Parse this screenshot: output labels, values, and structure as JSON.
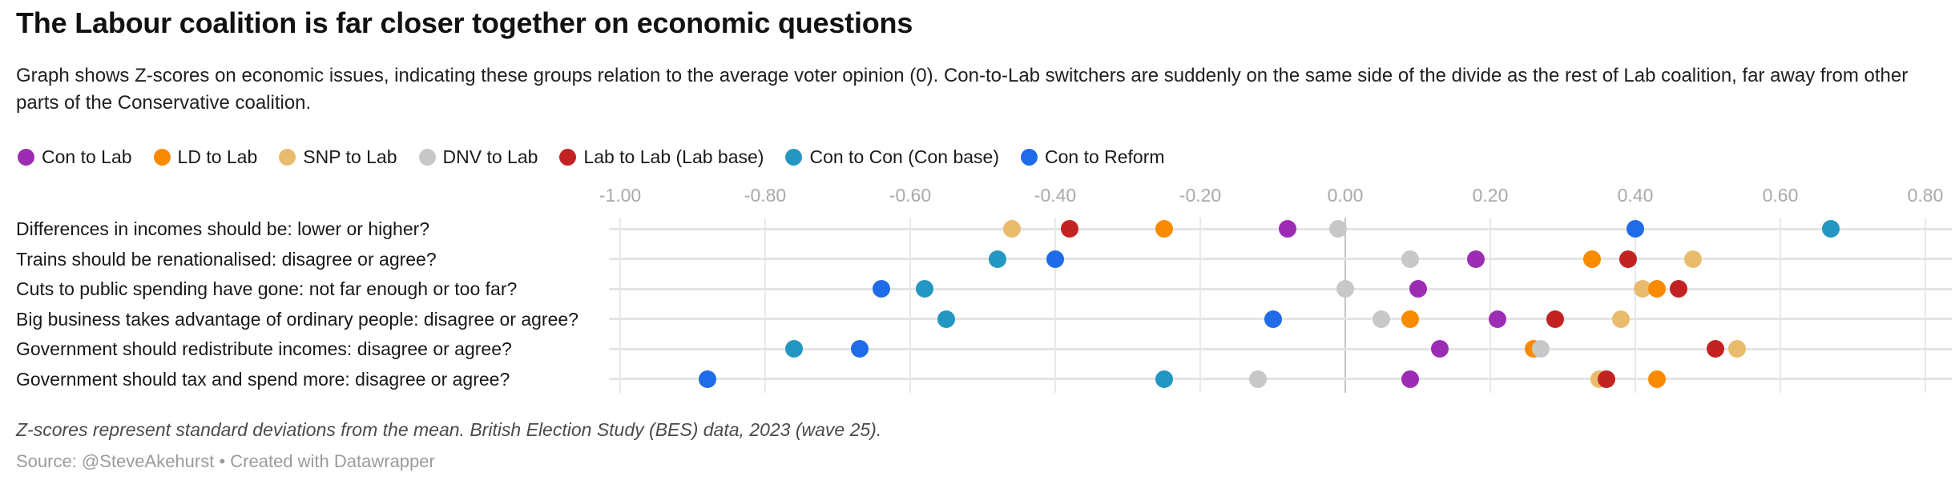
{
  "header": {
    "title": "The Labour coalition is far closer together on economic questions",
    "subtitle": "Graph shows Z-scores on economic issues, indicating these groups relation to the average voter opinion (0). Con-to-Lab switchers are suddenly on the same side of the divide as the rest of Lab coalition, far away from other parts of the Conservative coalition."
  },
  "footer": {
    "note": "Z-scores represent standard deviations from the mean. British Election Study (BES) data, 2023 (wave 25).",
    "source": "Source: @SteveAkehurst • Created with Datawrapper"
  },
  "chart_data": {
    "type": "scatter",
    "title": "The Labour coalition is far closer together on economic questions",
    "xlabel": "Z-score",
    "ylabel": "",
    "grid": "vertical",
    "legend_position": "top",
    "x_axis": {
      "range": [
        -1.02,
        0.84
      ],
      "ticks": [
        -1.0,
        -0.8,
        -0.6,
        -0.4,
        -0.2,
        0.0,
        0.2,
        0.4,
        0.6,
        0.8
      ],
      "tick_labels": [
        "-1.00",
        "-0.80",
        "-0.60",
        "-0.40",
        "-0.20",
        "0.00",
        "0.20",
        "0.40",
        "0.60",
        "0.80"
      ]
    },
    "categories": [
      "Differences in incomes should be: lower or higher?",
      "Trains should be renationalised: disagree or agree?",
      "Cuts to public spending have gone: not far enough or too far?",
      "Big business takes advantage of ordinary people: disagree or agree?",
      "Government should redistribute incomes: disagree or agree?",
      "Government should tax and spend more: disagree or agree?"
    ],
    "series": [
      {
        "name": "Con to Lab",
        "color": "#9d2cb5",
        "values": [
          -0.08,
          0.18,
          0.1,
          0.21,
          0.13,
          0.09
        ]
      },
      {
        "name": "LD to Lab",
        "color": "#fa8a00",
        "values": [
          -0.25,
          0.34,
          0.43,
          0.09,
          0.26,
          0.43
        ]
      },
      {
        "name": "SNP to Lab",
        "color": "#e9bc6d",
        "values": [
          -0.46,
          0.48,
          0.41,
          0.38,
          0.54,
          0.35
        ]
      },
      {
        "name": "DNV to Lab",
        "color": "#c8c8c8",
        "values": [
          -0.01,
          0.09,
          0.0,
          0.05,
          0.27,
          -0.12
        ]
      },
      {
        "name": "Lab to Lab (Lab base)",
        "color": "#c32222",
        "values": [
          -0.38,
          0.39,
          0.46,
          0.29,
          0.51,
          0.36
        ]
      },
      {
        "name": "Con to Con (Con base)",
        "color": "#2397c2",
        "values": [
          0.67,
          -0.48,
          -0.58,
          -0.55,
          -0.76,
          -0.25
        ]
      },
      {
        "name": "Con to Reform",
        "color": "#1f6be8",
        "values": [
          0.4,
          -0.4,
          -0.64,
          -0.1,
          -0.67,
          -0.88
        ]
      }
    ]
  }
}
